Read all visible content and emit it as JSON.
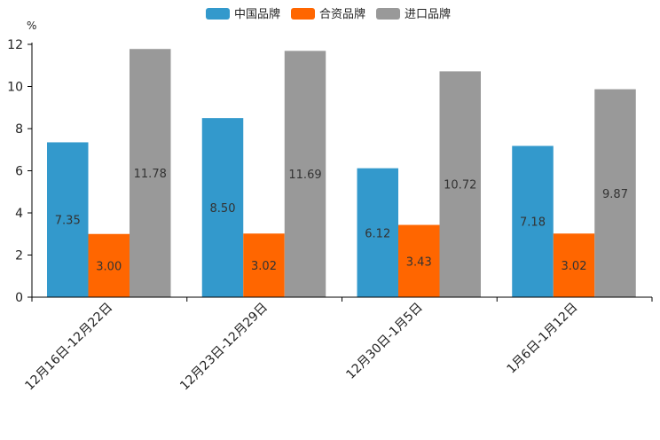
{
  "chart_data": {
    "type": "bar",
    "unit": "%",
    "categories": [
      "12月16日-12月22日",
      "12月23日-12月29日",
      "12月30日-1月5日",
      "1月6日-1月12日"
    ],
    "series": [
      {
        "name": "中国品牌",
        "color": "#3399cc",
        "values": [
          7.35,
          8.5,
          6.12,
          7.18
        ],
        "labels": [
          "7.35",
          "8.50",
          "6.12",
          "7.18"
        ]
      },
      {
        "name": "合资品牌",
        "color": "#ff6600",
        "values": [
          3.0,
          3.02,
          3.43,
          3.02
        ],
        "labels": [
          "3.00",
          "3.02",
          "3.43",
          "3.02"
        ]
      },
      {
        "name": "进口品牌",
        "color": "#999999",
        "values": [
          11.78,
          11.69,
          10.72,
          9.87
        ],
        "labels": [
          "11.78",
          "11.69",
          "10.72",
          "9.87"
        ]
      }
    ],
    "ylim": [
      0,
      12
    ],
    "yticks": [
      "0",
      "2",
      "4",
      "6",
      "8",
      "10",
      "12"
    ],
    "legend_position": "top-center"
  }
}
